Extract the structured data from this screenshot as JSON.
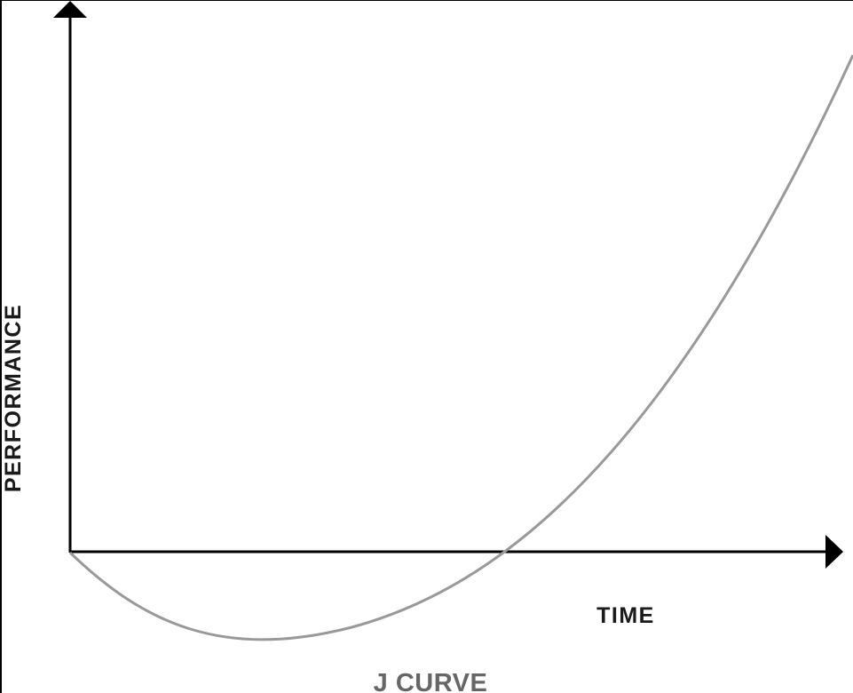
{
  "diagram": {
    "caption": "J CURVE",
    "x_axis_label": "TIME",
    "y_axis_label": "PERFORMANCE",
    "colors": {
      "background": "#ffffff",
      "frame": "#000000",
      "axes": "#000000",
      "curve": "#999999",
      "axis_label_text": "#1a1a1a",
      "caption_text": "#666666"
    }
  }
}
